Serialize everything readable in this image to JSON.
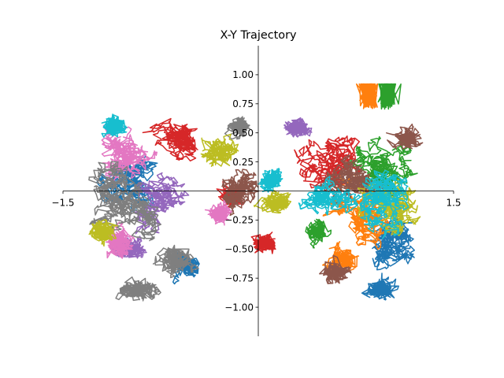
{
  "chart_data": {
    "type": "line",
    "title": "X-Y Trajectory",
    "xlabel": "",
    "ylabel": "",
    "xlim": [
      -1.5,
      1.5
    ],
    "ylim": [
      -1.25,
      1.25
    ],
    "x_ticks": [
      {
        "value": -1.5,
        "label": "−1.5"
      },
      {
        "value": 1.5,
        "label": "1.5"
      }
    ],
    "y_ticks": [
      {
        "value": 1.0,
        "label": "1.00"
      },
      {
        "value": 0.75,
        "label": "0.75"
      },
      {
        "value": 0.5,
        "label": "0.50"
      },
      {
        "value": 0.25,
        "label": "0.25"
      },
      {
        "value": -0.25,
        "label": "−0.25"
      },
      {
        "value": -0.5,
        "label": "−0.50"
      },
      {
        "value": -0.75,
        "label": "−0.75"
      },
      {
        "value": -1.0,
        "label": "−1.00"
      }
    ],
    "axes_centered": true,
    "grid": false,
    "legend": "none",
    "series": [
      {
        "color": "#1f77b4",
        "clusters": [
          [
            1.0,
            -0.45,
            0.28,
            0.38
          ],
          [
            -1.0,
            0.05,
            0.28,
            0.42
          ],
          [
            0.95,
            -0.85,
            0.14,
            0.12
          ],
          [
            -0.55,
            -0.65,
            0.15,
            0.12
          ]
        ]
      },
      {
        "color": "#ff7f0e",
        "clusters": [
          [
            0.85,
            -0.25,
            0.3,
            0.4
          ],
          [
            0.65,
            -0.6,
            0.15,
            0.15
          ],
          [
            0.85,
            0.85,
            0.06,
            0.04
          ]
        ]
      },
      {
        "color": "#2ca02c",
        "clusters": [
          [
            0.95,
            0.1,
            0.32,
            0.4
          ],
          [
            1.0,
            0.85,
            0.07,
            0.04
          ],
          [
            0.45,
            -0.35,
            0.1,
            0.1
          ]
        ]
      },
      {
        "color": "#d62728",
        "clusters": [
          [
            0.55,
            0.25,
            0.32,
            0.3
          ],
          [
            -0.6,
            0.45,
            0.25,
            0.25
          ],
          [
            0.05,
            -0.45,
            0.1,
            0.08
          ],
          [
            -0.2,
            -0.05,
            0.12,
            0.1
          ]
        ]
      },
      {
        "color": "#9467bd",
        "clusters": [
          [
            -0.75,
            -0.1,
            0.25,
            0.3
          ],
          [
            0.3,
            0.55,
            0.12,
            0.1
          ],
          [
            -1.0,
            -0.5,
            0.2,
            0.15
          ]
        ]
      },
      {
        "color": "#8c564b",
        "clusters": [
          [
            0.75,
            0.15,
            0.3,
            0.3
          ],
          [
            -0.15,
            0.0,
            0.25,
            0.2
          ],
          [
            1.15,
            0.45,
            0.12,
            0.12
          ],
          [
            0.6,
            -0.7,
            0.12,
            0.1
          ]
        ]
      },
      {
        "color": "#e377c2",
        "clusters": [
          [
            -1.05,
            0.35,
            0.28,
            0.38
          ],
          [
            -1.05,
            -0.45,
            0.15,
            0.2
          ],
          [
            -0.3,
            -0.2,
            0.1,
            0.1
          ]
        ]
      },
      {
        "color": "#7f7f7f",
        "clusters": [
          [
            -1.0,
            -0.1,
            0.35,
            0.55
          ],
          [
            -0.15,
            0.55,
            0.12,
            0.1
          ],
          [
            -0.9,
            -0.85,
            0.2,
            0.12
          ],
          [
            -0.65,
            -0.6,
            0.15,
            0.15
          ]
        ]
      },
      {
        "color": "#bcbd22",
        "clusters": [
          [
            1.0,
            -0.15,
            0.35,
            0.35
          ],
          [
            -0.3,
            0.35,
            0.15,
            0.15
          ],
          [
            -1.2,
            -0.35,
            0.12,
            0.12
          ],
          [
            0.15,
            -0.1,
            0.15,
            0.1
          ]
        ]
      },
      {
        "color": "#17becf",
        "clusters": [
          [
            1.0,
            0.0,
            0.3,
            0.42
          ],
          [
            0.55,
            -0.05,
            0.3,
            0.2
          ],
          [
            -1.1,
            0.55,
            0.1,
            0.1
          ],
          [
            0.1,
            0.1,
            0.12,
            0.1
          ]
        ]
      }
    ]
  }
}
